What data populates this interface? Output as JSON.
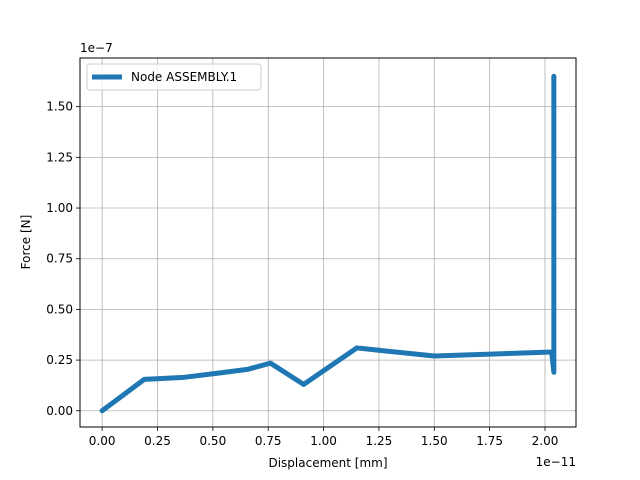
{
  "chart_data": {
    "type": "line",
    "title": "",
    "xlabel": "Displacement [mm]",
    "ylabel": "Force [N]",
    "x_offset_label": "1e−11",
    "y_offset_label": "1e−7",
    "xlim": [
      -0.1,
      2.14
    ],
    "ylim": [
      -0.08,
      1.74
    ],
    "x_ticks": [
      "0.00",
      "0.25",
      "0.50",
      "0.75",
      "1.00",
      "1.25",
      "1.50",
      "1.75",
      "2.00"
    ],
    "y_ticks": [
      "0.00",
      "0.25",
      "0.50",
      "0.75",
      "1.00",
      "1.25",
      "1.50"
    ],
    "grid": true,
    "legend_position": "top-left",
    "series": [
      {
        "name": "Node ASSEMBLY.1",
        "color": "#1f77b4",
        "x": [
          0.0,
          0.19,
          0.37,
          0.52,
          0.66,
          0.76,
          0.91,
          1.15,
          1.5,
          2.03,
          2.04,
          2.04,
          2.04,
          2.04,
          2.04,
          2.04
        ],
        "y": [
          0.0,
          0.155,
          0.165,
          0.185,
          0.205,
          0.235,
          0.13,
          0.31,
          0.27,
          0.29,
          0.19,
          0.55,
          1.05,
          0.65,
          1.3,
          1.65
        ]
      }
    ]
  }
}
